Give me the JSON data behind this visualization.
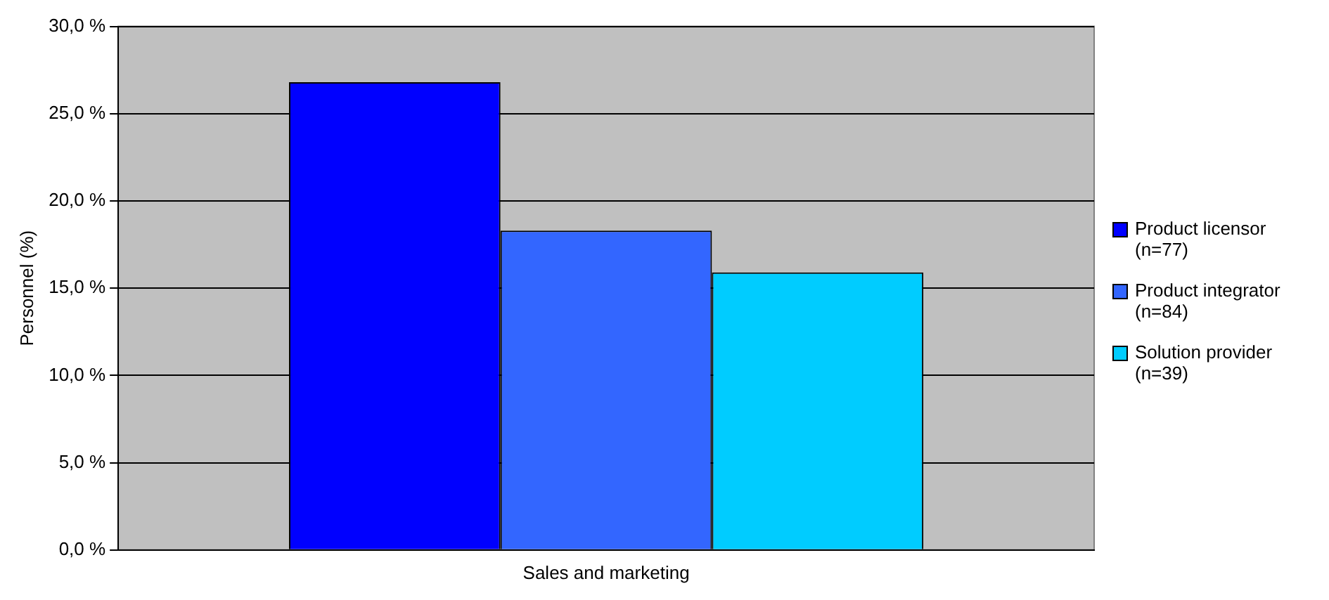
{
  "chart_data": {
    "type": "bar",
    "ylabel": "Personnel (%)",
    "categories": [
      "Sales and marketing"
    ],
    "series": [
      {
        "name": "Product licensor (n=77)",
        "color": "#0000ff",
        "values": [
          26.8
        ]
      },
      {
        "name": "Product integrator (n=84)",
        "color": "#3366ff",
        "values": [
          18.3
        ]
      },
      {
        "name": "Solution provider (n=39)",
        "color": "#00ccff",
        "values": [
          15.9
        ]
      }
    ],
    "ylim": [
      0,
      30
    ],
    "yticks": [
      {
        "value": 0,
        "label": "0,0 %"
      },
      {
        "value": 5,
        "label": "5,0 %"
      },
      {
        "value": 10,
        "label": "10,0 %"
      },
      {
        "value": 15,
        "label": "15,0 %"
      },
      {
        "value": 20,
        "label": "20,0 %"
      },
      {
        "value": 25,
        "label": "25,0 %"
      },
      {
        "value": 30,
        "label": "30,0 %"
      }
    ],
    "grid": "y",
    "legend": "right"
  }
}
